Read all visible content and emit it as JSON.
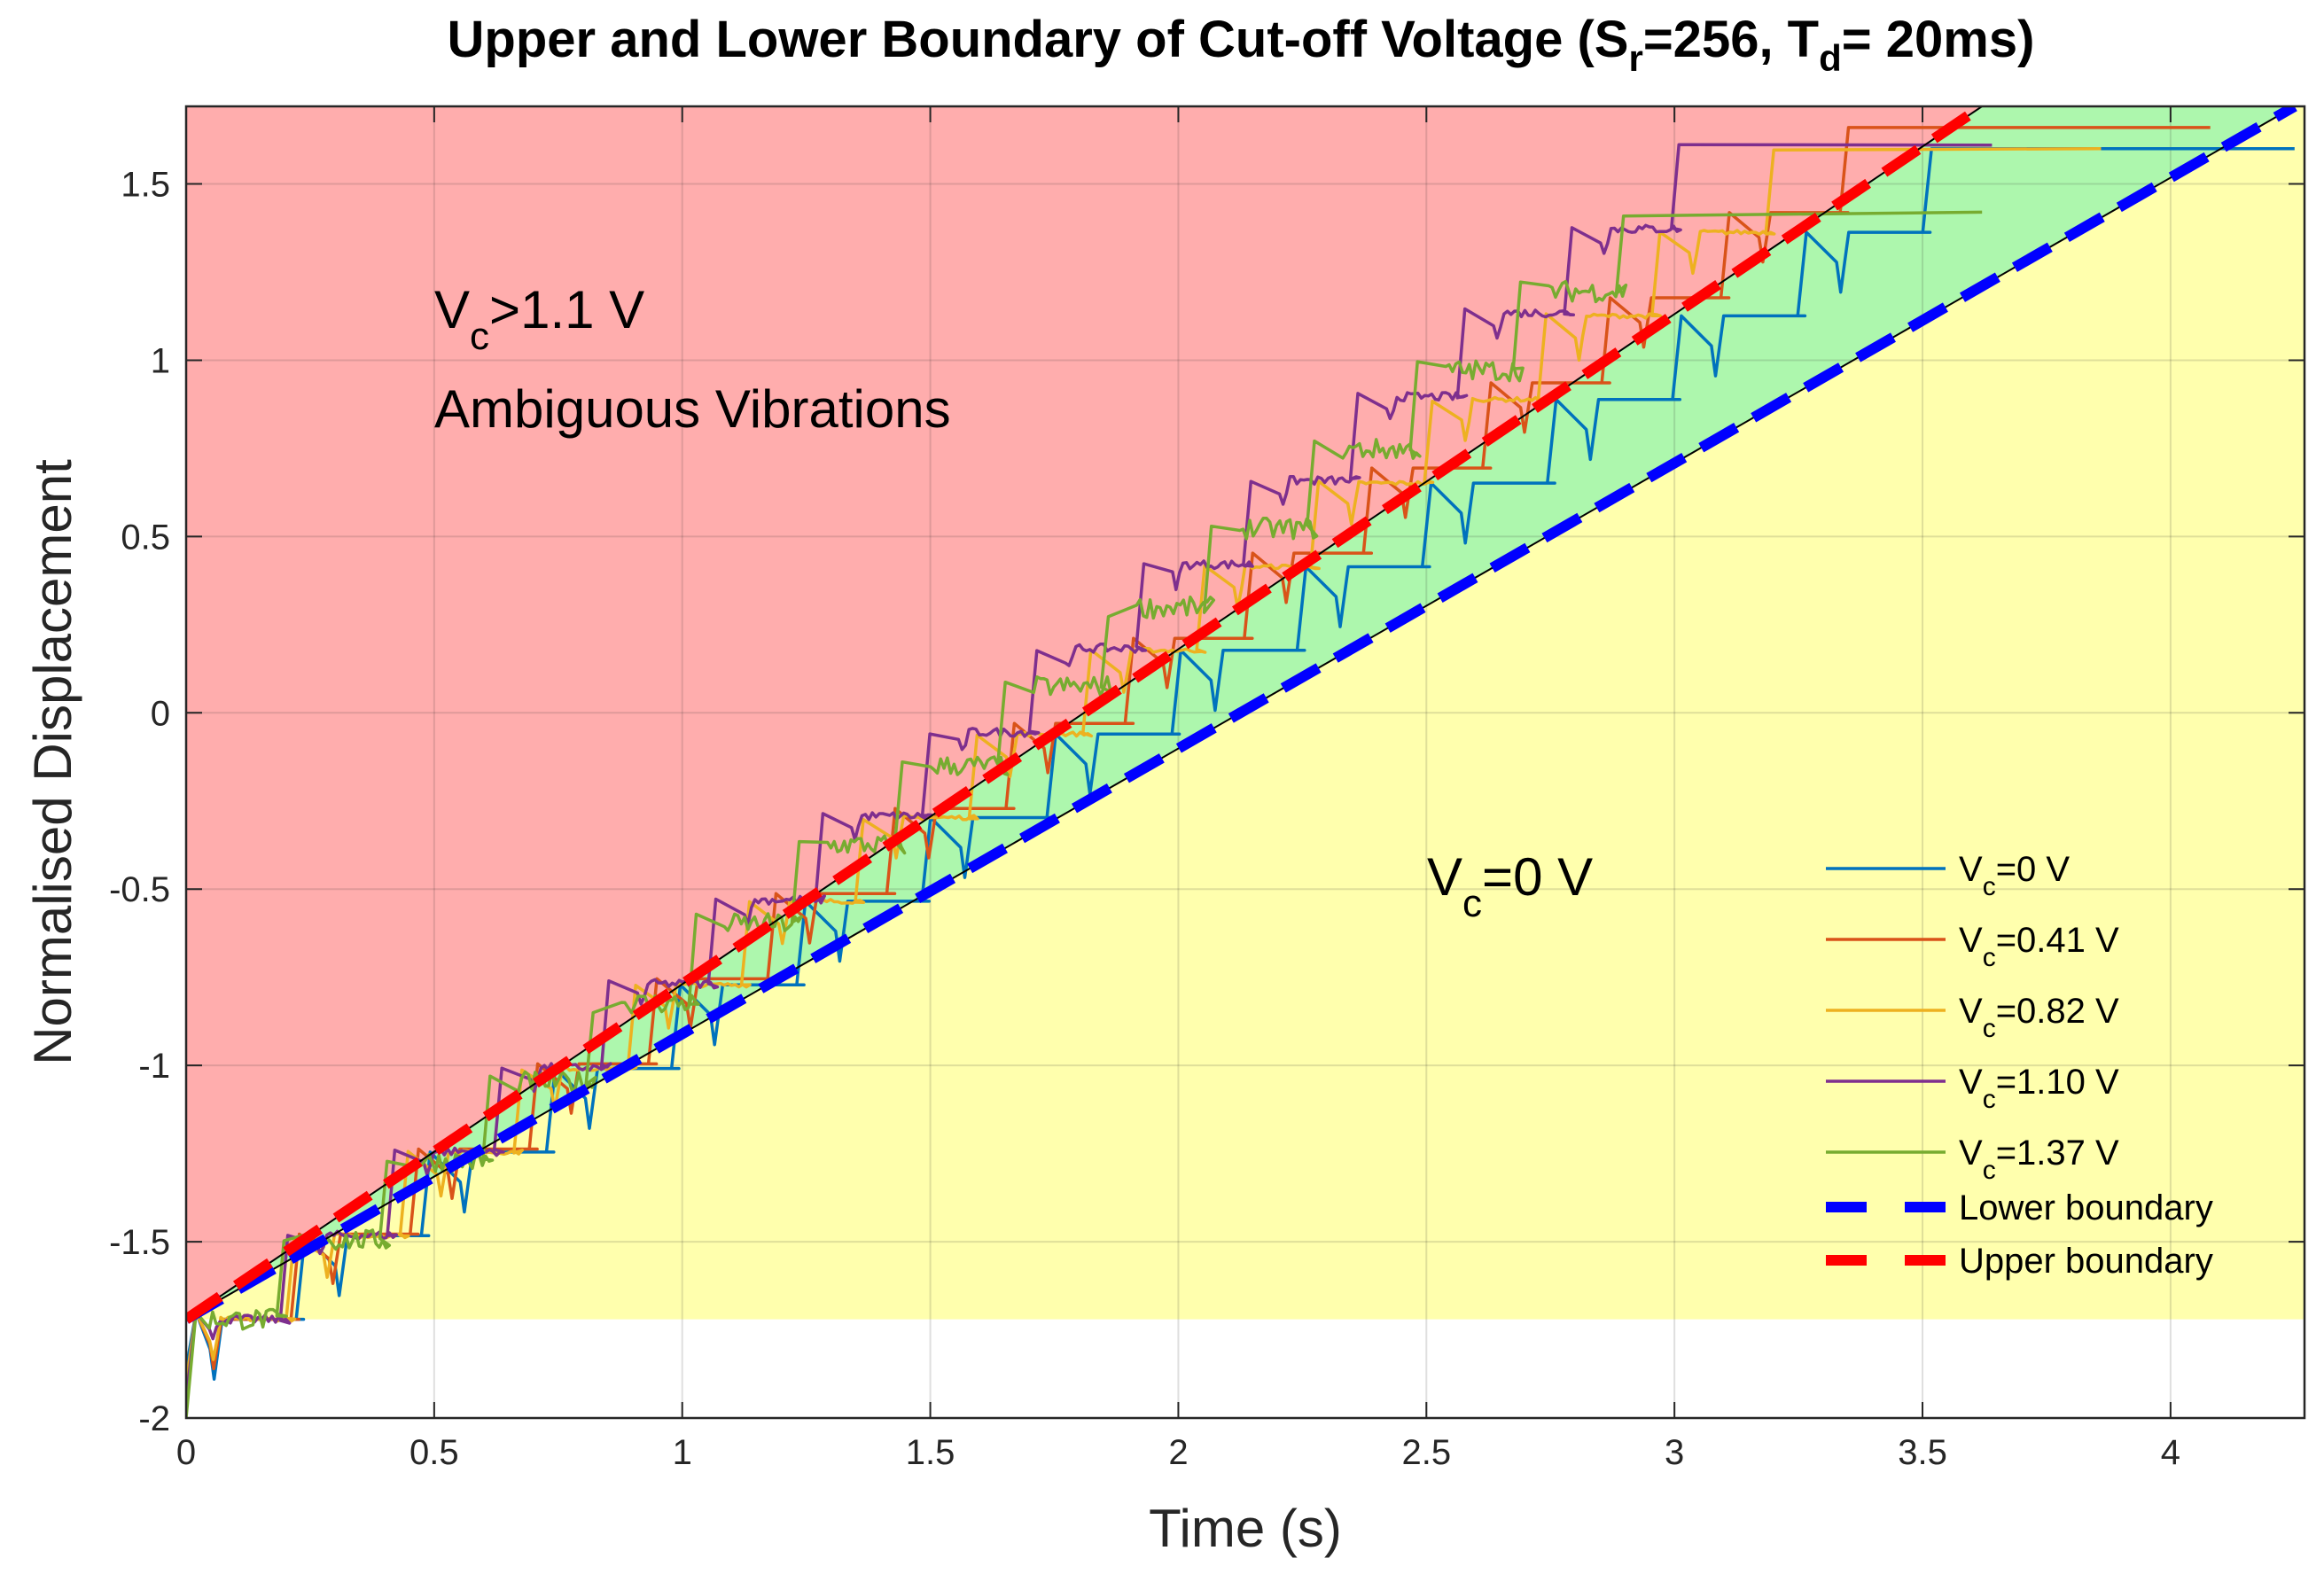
{
  "chart_data": {
    "type": "line",
    "title": {
      "main": "Upper and Lower Boundary of Cut-off Voltage (S",
      "sub1": "r",
      "mid": "=256, T",
      "sub2": "d",
      "end": "= 20ms)"
    },
    "xlabel": "Time (s)",
    "ylabel": "Normalised Displacement",
    "xlim": [
      0,
      4.27
    ],
    "ylim": [
      -2,
      1.72
    ],
    "xticks": [
      0,
      0.5,
      1,
      1.5,
      2,
      2.5,
      3,
      3.5,
      4
    ],
    "xtick_labels": [
      "0",
      "0.5",
      "1",
      "1.5",
      "2",
      "2.5",
      "3",
      "3.5",
      "4"
    ],
    "yticks": [
      -2,
      -1.5,
      -1,
      -0.5,
      0,
      0.5,
      1,
      1.5
    ],
    "ytick_labels": [
      "-2",
      "-1.5",
      "-1",
      "-0.5",
      "0",
      "0.5",
      "1",
      "1.5"
    ],
    "grid": true,
    "regions": [
      {
        "name": "ambiguous",
        "color": "#ffadad"
      },
      {
        "name": "transition",
        "color": "#adf7ad"
      },
      {
        "name": "stable",
        "color": "#ffffad"
      }
    ],
    "annotations": [
      {
        "id": "upper-region",
        "base": "V",
        "sub": "c",
        "rest": ">1.1 V",
        "line2": "Ambiguous Vibrations"
      },
      {
        "id": "lower-region",
        "base": "V",
        "sub": "c",
        "rest": "=0 V"
      }
    ],
    "boundaries": {
      "lower": {
        "name": "Lower boundary",
        "color": "#0000ff",
        "x": [
          0,
          4.25
        ],
        "y": [
          -1.72,
          1.72
        ]
      },
      "upper": {
        "name": "Upper boundary",
        "color": "#ff0000",
        "x": [
          0,
          3.62
        ],
        "y": [
          -1.72,
          1.72
        ]
      }
    },
    "series": [
      {
        "name": "Vc=0 V",
        "label_base": "V",
        "label_sub": "c",
        "label_rest": "=0 V",
        "color": "#0072bd",
        "step_dt": 0.2522,
        "steps": 14,
        "y0": -1.72,
        "y_start": -1.86,
        "y_final": 1.6,
        "x_end": 4.25,
        "noise": 0.0,
        "dip": 0.17
      },
      {
        "name": "Vc=0.41 V",
        "label_base": "V",
        "label_sub": "c",
        "label_rest": "=0.41 V",
        "color": "#d95319",
        "step_dt": 0.2402,
        "steps": 14,
        "y0": -1.72,
        "y_start": -1.93,
        "y_final": 1.66,
        "x_end": 4.08,
        "noise": 0.0,
        "dip": 0.14
      },
      {
        "name": "Vc=0.82 V",
        "label_base": "V",
        "label_sub": "c",
        "label_rest": "=0.82 V",
        "color": "#edb120",
        "step_dt": 0.2294,
        "steps": 14,
        "y0": -1.72,
        "y_start": -1.9,
        "y_final": 1.6,
        "x_end": 3.86,
        "noise": 0.006,
        "dip": 0.12
      },
      {
        "name": "Vc=1.10 V",
        "label_base": "V",
        "label_sub": "c",
        "label_rest": "=1.10 V",
        "color": "#7e2f8e",
        "step_dt": 0.2157,
        "steps": 14,
        "y0": -1.72,
        "y_start": -1.95,
        "y_final": 1.61,
        "x_end": 3.64,
        "noise": 0.012,
        "dip": 0.06
      },
      {
        "name": "Vc=1.37 V",
        "label_base": "V",
        "label_sub": "c",
        "label_rest": "=1.37 V",
        "color": "#77ac30",
        "step_dt": 0.2077,
        "steps": 14,
        "y0": -1.72,
        "y_start": -2.0,
        "y_final": 1.42,
        "x_end": 3.62,
        "noise": 0.03,
        "dip": 0.0
      }
    ]
  }
}
